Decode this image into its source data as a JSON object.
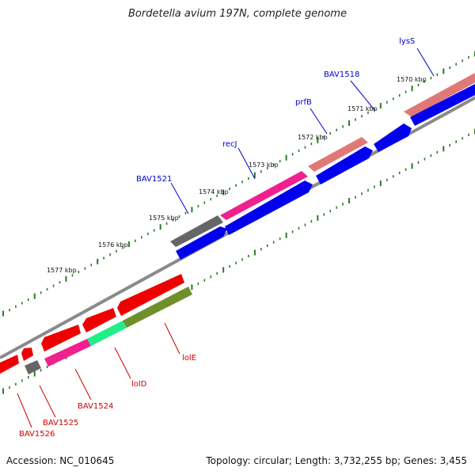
{
  "title": "Bordetella avium 197N, complete genome",
  "footer": {
    "accession": "Accession: NC_010645",
    "stats": "Topology: circular; Length: 3,732,255 bp; Genes: 3,455"
  },
  "colors": {
    "label_upper": "#0000cc",
    "label_lower": "#cc0000",
    "tick": "#2a7a2a",
    "backbone": "#888888"
  },
  "ticks": [
    "1570 kbp",
    "1571 kbp",
    "1572 kbp",
    "1573 kbp",
    "1574 kbp",
    "1575 kbp",
    "1576 kbp",
    "1577 kbp"
  ],
  "upper_labels": [
    "lysS",
    "BAV1518",
    "prfB",
    "recJ",
    "BAV1521"
  ],
  "lower_labels": [
    "lolE",
    "lolD",
    "BAV1524",
    "BAV1525",
    "BAV1526"
  ]
}
